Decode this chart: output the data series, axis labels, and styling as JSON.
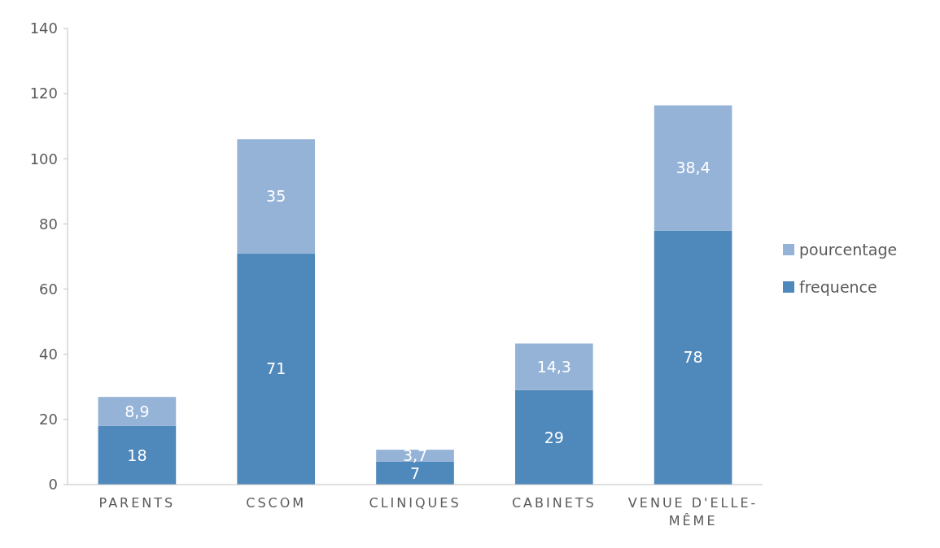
{
  "chart_data": {
    "type": "bar",
    "stacked": true,
    "categories": [
      "PARENTS",
      "CSCOM",
      "CLINIQUES",
      "CABINETS",
      "VENUE D'ELLE-MÊME"
    ],
    "series": [
      {
        "name": "frequence",
        "color": "#4f88bb",
        "values": [
          18,
          71,
          7,
          29,
          78
        ],
        "value_labels": [
          "18",
          "71",
          "7",
          "29",
          "78"
        ]
      },
      {
        "name": "pourcentage",
        "color": "#95b3d7",
        "values": [
          8.9,
          35,
          3.7,
          14.3,
          38.4
        ],
        "value_labels": [
          "8,9",
          "35",
          "3,7",
          "14,3",
          "38,4"
        ]
      }
    ],
    "ylim": [
      0,
      140
    ],
    "yticks": [
      0,
      20,
      40,
      60,
      80,
      100,
      120,
      140
    ],
    "grid": false,
    "legend": "right"
  }
}
